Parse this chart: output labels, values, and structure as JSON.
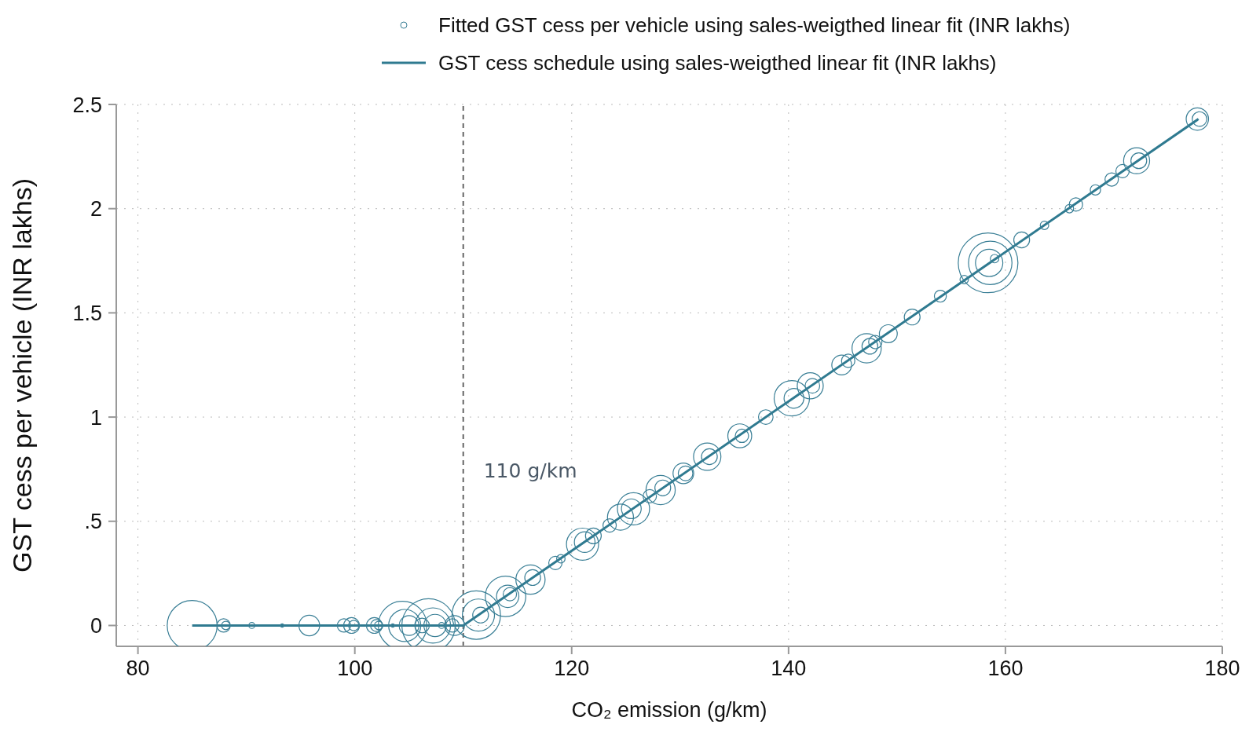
{
  "chart_data": {
    "type": "bubble",
    "xlabel": "CO₂ emission (g/km)",
    "ylabel": "GST cess per vehicle (INR lakhs)",
    "xlim": [
      78,
      180
    ],
    "xticks": [
      80,
      100,
      120,
      140,
      160,
      180
    ],
    "ylim": [
      -0.1,
      2.5
    ],
    "yticks": [
      0,
      {
        "value": 0.5,
        "label": ".5"
      },
      1,
      1.5,
      2,
      2.5
    ],
    "grid": true,
    "legend": "top",
    "ref_lines": [
      {
        "axis": "x",
        "value": 110,
        "label": "110 g/km",
        "color": "#666666",
        "line_style": "dashed"
      }
    ],
    "series": [
      {
        "name": "Fitted GST cess per vehicle using sales-weigthed linear fit (INR lakhs)",
        "color": "#3a7f96",
        "x": [
          85,
          87.9,
          88.1,
          90.5,
          93.3,
          95.8,
          99,
          99.7,
          99.9,
          101.8,
          102,
          102.2,
          103.5,
          104.4,
          104.6,
          105,
          106.2,
          106.8,
          107.2,
          107.4,
          108,
          109,
          109.2,
          111.2,
          111.4,
          111.6,
          113.9,
          114.1,
          114.3,
          116.2,
          116.4,
          118.5,
          119,
          121,
          121.2,
          122,
          123.5,
          124.5,
          125.7,
          125.5,
          127.2,
          128.2,
          128.4,
          130.3,
          130.5,
          132.5,
          132.7,
          135.5,
          135.7,
          137.9,
          140.3,
          140.5,
          142,
          142.2,
          144.9,
          145.5,
          147.2,
          147.5,
          148,
          149.2,
          151.4,
          154,
          156.2,
          158.4,
          158.6,
          158.5,
          159,
          161.5,
          163.6,
          165.9,
          166.5,
          168.3,
          169.8,
          170.8,
          172.1,
          172.3,
          177.7,
          177.9
        ],
        "values": [
          0,
          0,
          0,
          0,
          0,
          0,
          0,
          0,
          0,
          0,
          0,
          0,
          0,
          0,
          0,
          0,
          0,
          0,
          0,
          0,
          0,
          0,
          0,
          0.05,
          0.05,
          0.05,
          0.14,
          0.14,
          0.15,
          0.22,
          0.23,
          0.3,
          0.32,
          0.39,
          0.4,
          0.43,
          0.48,
          0.52,
          0.56,
          0.56,
          0.62,
          0.65,
          0.66,
          0.73,
          0.73,
          0.81,
          0.81,
          0.91,
          0.91,
          1,
          1.09,
          1.09,
          1.15,
          1.15,
          1.25,
          1.27,
          1.33,
          1.34,
          1.36,
          1.4,
          1.48,
          1.58,
          1.66,
          1.74,
          1.74,
          1.74,
          1.76,
          1.85,
          1.92,
          2,
          2.02,
          2.09,
          2.14,
          2.18,
          2.23,
          2.23,
          2.43,
          2.43
        ],
        "sizes": [
          0.7,
          0.05,
          0.02,
          0.01,
          0.003,
          0.12,
          0.05,
          0.07,
          0.03,
          0.07,
          0.04,
          0.02,
          0.003,
          0.66,
          0.29,
          0.11,
          0.06,
          0.8,
          0.35,
          0.14,
          0.01,
          0.05,
          0.11,
          0.66,
          0.29,
          0.07,
          0.46,
          0.14,
          0.05,
          0.24,
          0.07,
          0.05,
          0.02,
          0.29,
          0.12,
          0.07,
          0.05,
          0.19,
          0.29,
          0.11,
          0.05,
          0.24,
          0.07,
          0.12,
          0.06,
          0.21,
          0.07,
          0.16,
          0.05,
          0.06,
          0.35,
          0.11,
          0.19,
          0.06,
          0.11,
          0.05,
          0.24,
          0.07,
          0.05,
          0.09,
          0.07,
          0.04,
          0.02,
          1,
          0.53,
          0.21,
          0.02,
          0.07,
          0.02,
          0.02,
          0.05,
          0.03,
          0.05,
          0.05,
          0.19,
          0.07,
          0.14,
          0.06
        ]
      },
      {
        "name": "GST cess schedule using sales-weigthed linear fit (INR lakhs)",
        "type": "line",
        "color": "#2f7a90",
        "x": [
          85,
          110,
          177.8
        ],
        "values": [
          0,
          0,
          2.43
        ]
      }
    ]
  }
}
